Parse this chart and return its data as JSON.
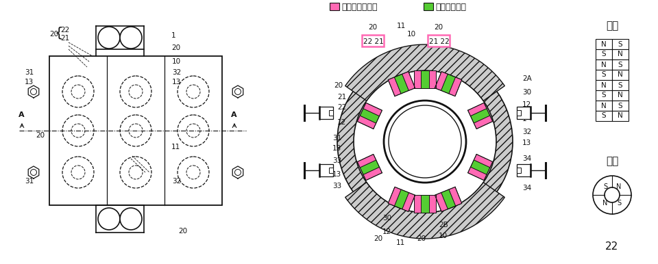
{
  "background_color": "#ffffff",
  "legend_pink_label": "黒体放射焼結体",
  "legend_green_label": "電磁波収束体",
  "pink_color": "#FF69B4",
  "green_color": "#55CC33",
  "line_color": "#111111",
  "side_label": "側面",
  "top_label": "上面",
  "figure_number": "22",
  "ns_rows": [
    [
      "N",
      "S"
    ],
    [
      "S",
      "N"
    ],
    [
      "N",
      "S"
    ],
    [
      "S",
      "N"
    ],
    [
      "N",
      "S"
    ],
    [
      "S",
      "N"
    ],
    [
      "N",
      "S"
    ],
    [
      "S",
      "N"
    ]
  ]
}
